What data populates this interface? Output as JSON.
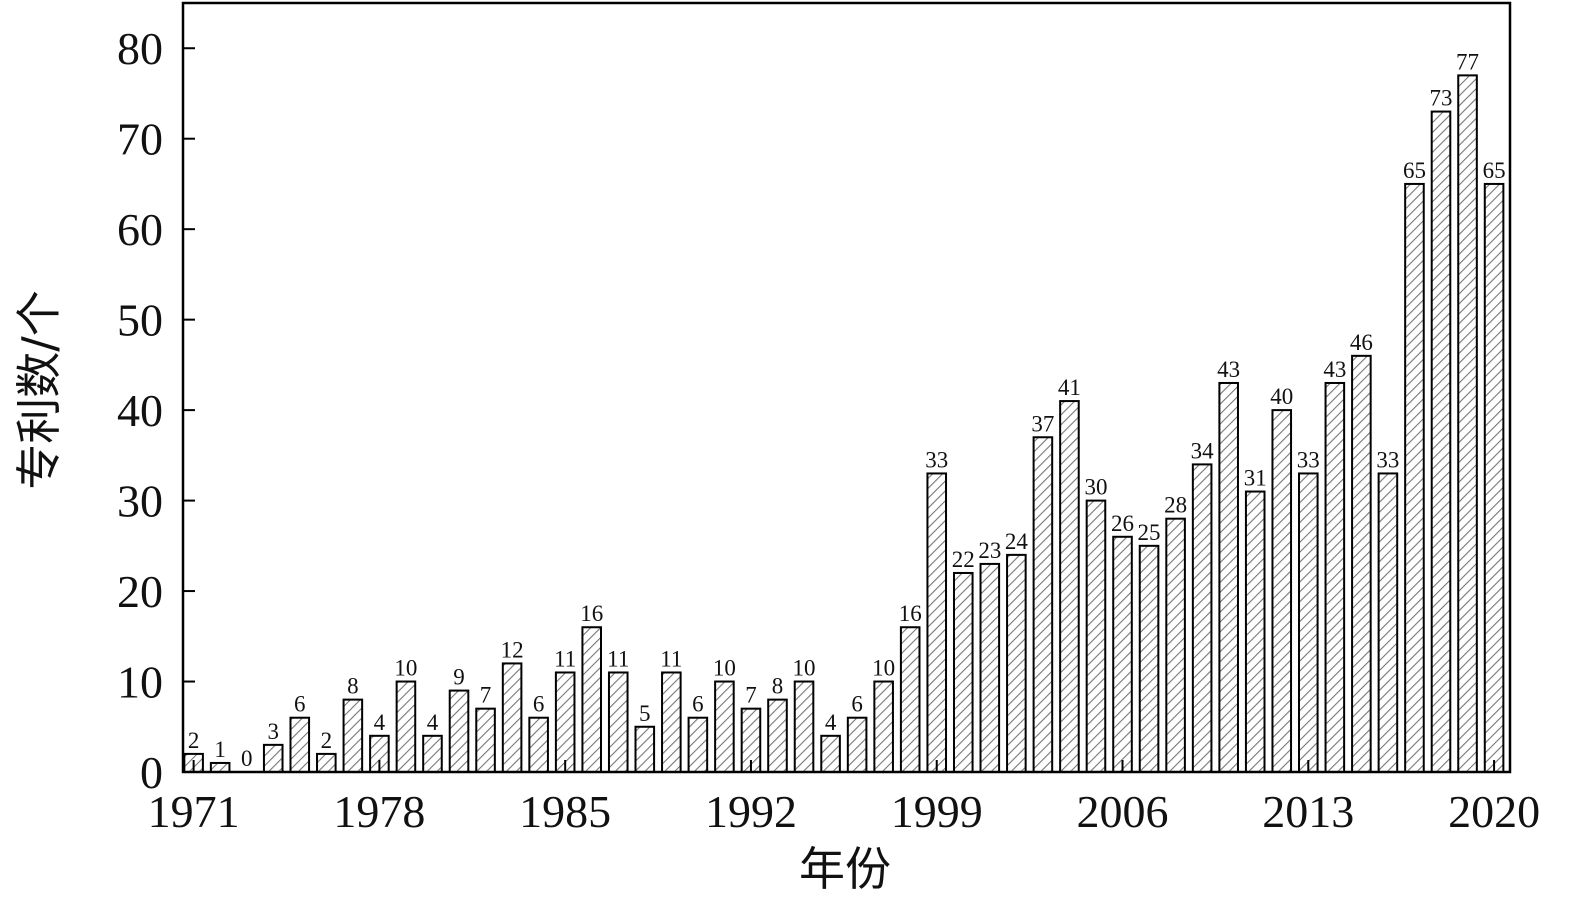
{
  "chart_data": {
    "type": "bar",
    "x_label": "年份",
    "y_label": "专利数/个",
    "x": [
      1971,
      1972,
      1973,
      1974,
      1975,
      1976,
      1977,
      1978,
      1979,
      1980,
      1981,
      1982,
      1983,
      1984,
      1985,
      1986,
      1987,
      1988,
      1989,
      1990,
      1991,
      1992,
      1993,
      1994,
      1995,
      1996,
      1997,
      1998,
      1999,
      2000,
      2001,
      2002,
      2003,
      2004,
      2005,
      2006,
      2007,
      2008,
      2009,
      2010,
      2011,
      2012,
      2013,
      2014,
      2015,
      2016,
      2017,
      2018,
      2019,
      2020
    ],
    "values": [
      2,
      1,
      0,
      3,
      6,
      2,
      8,
      4,
      10,
      4,
      9,
      7,
      12,
      6,
      11,
      16,
      11,
      5,
      11,
      6,
      10,
      7,
      8,
      10,
      4,
      6,
      10,
      16,
      33,
      22,
      23,
      24,
      37,
      41,
      30,
      26,
      25,
      28,
      34,
      43,
      31,
      40,
      33,
      43,
      46,
      33,
      65,
      73,
      77,
      65
    ],
    "color": "#888888",
    "xlim": [
      1970.6,
      2020.6
    ],
    "xticks": [
      1971,
      1978,
      1985,
      1992,
      1999,
      2006,
      2013,
      2020
    ],
    "ylim": [
      0,
      85
    ],
    "yticks": [
      0,
      10,
      20,
      30,
      40,
      50,
      60,
      70,
      80
    ]
  }
}
